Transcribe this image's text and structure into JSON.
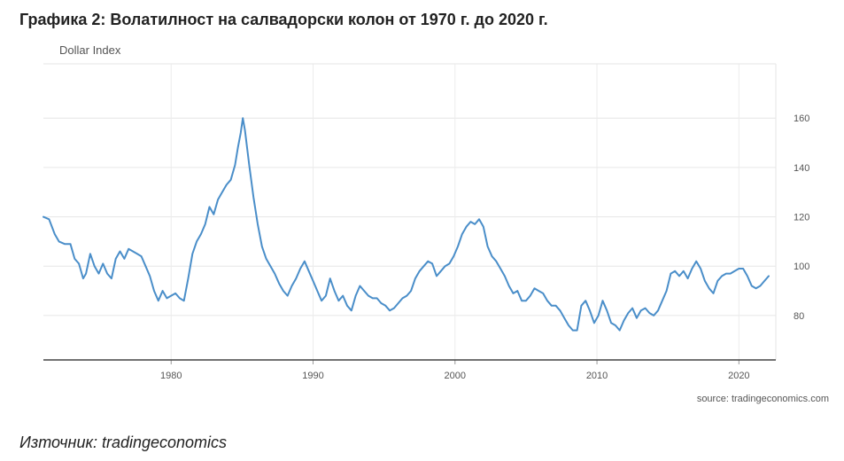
{
  "page": {
    "title": "Графика 2: Волатилност на салвадорски колон от 1970 г. до 2020 г.",
    "caption": "Източник: tradingeconomics"
  },
  "chart_data": {
    "type": "line",
    "title": "Dollar Index",
    "source_note": "source: tradingeconomics.com",
    "xlabel": "",
    "ylabel": "",
    "xlim": [
      1971,
      2022.6
    ],
    "ylim": [
      62,
      182
    ],
    "x_ticks": [
      1980,
      1990,
      2000,
      2010,
      2020
    ],
    "y_ticks": [
      80,
      100,
      120,
      140,
      160
    ],
    "y_axis_position": "right",
    "grid": true,
    "line_color": "#4a8ec9",
    "series": [
      {
        "name": "",
        "points": [
          [
            1971.0,
            120
          ],
          [
            1971.4,
            119
          ],
          [
            1971.8,
            113
          ],
          [
            1972.1,
            110
          ],
          [
            1972.5,
            109
          ],
          [
            1972.9,
            109
          ],
          [
            1973.2,
            103
          ],
          [
            1973.5,
            101
          ],
          [
            1973.8,
            95
          ],
          [
            1974.0,
            97
          ],
          [
            1974.3,
            105
          ],
          [
            1974.6,
            100
          ],
          [
            1974.9,
            97
          ],
          [
            1975.2,
            101
          ],
          [
            1975.5,
            97
          ],
          [
            1975.8,
            95
          ],
          [
            1976.1,
            103
          ],
          [
            1976.4,
            106
          ],
          [
            1976.7,
            103
          ],
          [
            1977.0,
            107
          ],
          [
            1977.3,
            106
          ],
          [
            1977.6,
            105
          ],
          [
            1977.9,
            104
          ],
          [
            1978.2,
            100
          ],
          [
            1978.5,
            96
          ],
          [
            1978.8,
            90
          ],
          [
            1979.1,
            86
          ],
          [
            1979.4,
            90
          ],
          [
            1979.7,
            87
          ],
          [
            1980.0,
            88
          ],
          [
            1980.3,
            89
          ],
          [
            1980.6,
            87
          ],
          [
            1980.9,
            86
          ],
          [
            1981.2,
            95
          ],
          [
            1981.5,
            105
          ],
          [
            1981.8,
            110
          ],
          [
            1982.1,
            113
          ],
          [
            1982.4,
            117
          ],
          [
            1982.7,
            124
          ],
          [
            1983.0,
            121
          ],
          [
            1983.3,
            127
          ],
          [
            1983.6,
            130
          ],
          [
            1983.9,
            133
          ],
          [
            1984.2,
            135
          ],
          [
            1984.5,
            141
          ],
          [
            1984.7,
            148
          ],
          [
            1984.9,
            154
          ],
          [
            1985.05,
            160
          ],
          [
            1985.2,
            155
          ],
          [
            1985.5,
            141
          ],
          [
            1985.8,
            128
          ],
          [
            1986.1,
            117
          ],
          [
            1986.4,
            108
          ],
          [
            1986.7,
            103
          ],
          [
            1987.0,
            100
          ],
          [
            1987.3,
            97
          ],
          [
            1987.6,
            93
          ],
          [
            1987.9,
            90
          ],
          [
            1988.2,
            88
          ],
          [
            1988.5,
            92
          ],
          [
            1988.8,
            95
          ],
          [
            1989.1,
            99
          ],
          [
            1989.4,
            102
          ],
          [
            1989.7,
            98
          ],
          [
            1990.0,
            94
          ],
          [
            1990.3,
            90
          ],
          [
            1990.6,
            86
          ],
          [
            1990.9,
            88
          ],
          [
            1991.2,
            95
          ],
          [
            1991.5,
            90
          ],
          [
            1991.8,
            86
          ],
          [
            1992.1,
            88
          ],
          [
            1992.4,
            84
          ],
          [
            1992.7,
            82
          ],
          [
            1993.0,
            88
          ],
          [
            1993.3,
            92
          ],
          [
            1993.6,
            90
          ],
          [
            1993.9,
            88
          ],
          [
            1994.2,
            87
          ],
          [
            1994.5,
            87
          ],
          [
            1994.8,
            85
          ],
          [
            1995.1,
            84
          ],
          [
            1995.4,
            82
          ],
          [
            1995.7,
            83
          ],
          [
            1996.0,
            85
          ],
          [
            1996.3,
            87
          ],
          [
            1996.6,
            88
          ],
          [
            1996.9,
            90
          ],
          [
            1997.2,
            95
          ],
          [
            1997.5,
            98
          ],
          [
            1997.8,
            100
          ],
          [
            1998.1,
            102
          ],
          [
            1998.4,
            101
          ],
          [
            1998.7,
            96
          ],
          [
            1999.0,
            98
          ],
          [
            1999.3,
            100
          ],
          [
            1999.6,
            101
          ],
          [
            1999.9,
            104
          ],
          [
            2000.2,
            108
          ],
          [
            2000.5,
            113
          ],
          [
            2000.8,
            116
          ],
          [
            2001.1,
            118
          ],
          [
            2001.4,
            117
          ],
          [
            2001.7,
            119
          ],
          [
            2002.0,
            116
          ],
          [
            2002.3,
            108
          ],
          [
            2002.6,
            104
          ],
          [
            2002.9,
            102
          ],
          [
            2003.2,
            99
          ],
          [
            2003.5,
            96
          ],
          [
            2003.8,
            92
          ],
          [
            2004.1,
            89
          ],
          [
            2004.4,
            90
          ],
          [
            2004.7,
            86
          ],
          [
            2005.0,
            86
          ],
          [
            2005.3,
            88
          ],
          [
            2005.6,
            91
          ],
          [
            2005.9,
            90
          ],
          [
            2006.2,
            89
          ],
          [
            2006.5,
            86
          ],
          [
            2006.8,
            84
          ],
          [
            2007.1,
            84
          ],
          [
            2007.4,
            82
          ],
          [
            2007.7,
            79
          ],
          [
            2008.0,
            76
          ],
          [
            2008.3,
            74
          ],
          [
            2008.6,
            74
          ],
          [
            2008.9,
            84
          ],
          [
            2009.2,
            86
          ],
          [
            2009.5,
            82
          ],
          [
            2009.8,
            77
          ],
          [
            2010.1,
            80
          ],
          [
            2010.4,
            86
          ],
          [
            2010.7,
            82
          ],
          [
            2011.0,
            77
          ],
          [
            2011.3,
            76
          ],
          [
            2011.6,
            74
          ],
          [
            2011.9,
            78
          ],
          [
            2012.2,
            81
          ],
          [
            2012.5,
            83
          ],
          [
            2012.8,
            79
          ],
          [
            2013.1,
            82
          ],
          [
            2013.4,
            83
          ],
          [
            2013.7,
            81
          ],
          [
            2014.0,
            80
          ],
          [
            2014.3,
            82
          ],
          [
            2014.6,
            86
          ],
          [
            2014.9,
            90
          ],
          [
            2015.2,
            97
          ],
          [
            2015.5,
            98
          ],
          [
            2015.8,
            96
          ],
          [
            2016.1,
            98
          ],
          [
            2016.4,
            95
          ],
          [
            2016.7,
            99
          ],
          [
            2017.0,
            102
          ],
          [
            2017.3,
            99
          ],
          [
            2017.6,
            94
          ],
          [
            2017.9,
            91
          ],
          [
            2018.2,
            89
          ],
          [
            2018.5,
            94
          ],
          [
            2018.8,
            96
          ],
          [
            2019.1,
            97
          ],
          [
            2019.4,
            97
          ],
          [
            2019.7,
            98
          ],
          [
            2020.0,
            99
          ],
          [
            2020.3,
            99
          ],
          [
            2020.6,
            96
          ],
          [
            2020.9,
            92
          ],
          [
            2021.2,
            91
          ],
          [
            2021.5,
            92
          ],
          [
            2021.8,
            94
          ],
          [
            2022.1,
            96
          ]
        ]
      }
    ]
  }
}
